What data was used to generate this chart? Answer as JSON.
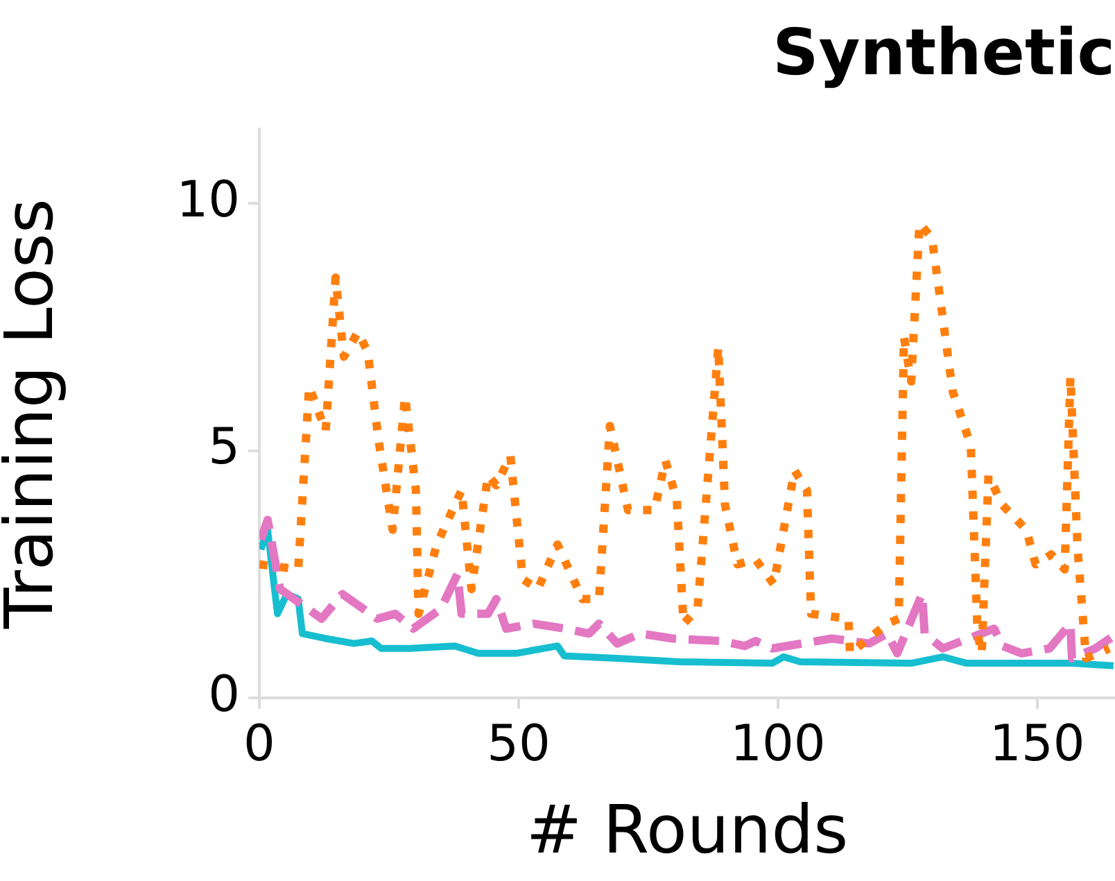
{
  "chart_data": {
    "type": "line",
    "title": "Synthetic",
    "xlabel": "# Rounds",
    "ylabel": "Training Loss",
    "xlim": [
      0,
      165
    ],
    "xticks": [
      0,
      50,
      100,
      150
    ],
    "ylim": [
      0,
      11.5
    ],
    "yticks": [
      0,
      5,
      10
    ],
    "grid": false,
    "legend": false,
    "marker": "none",
    "series": [
      {
        "color": "#ff7f0e",
        "line_style": "dotted",
        "x": [
          0,
          7.5,
          9.6,
          12.8,
          14.7,
          16.3,
          19,
          20.9,
          23,
          25.7,
          28.1,
          30.2,
          30.7,
          34.2,
          39,
          40.9,
          44.1,
          45.7,
          48.4,
          50.8,
          53.7,
          57.5,
          62.3,
          65.5,
          67.6,
          71.1,
          76.2,
          78.3,
          80.5,
          81.8,
          84.5,
          88.5,
          89.8,
          92.2,
          95.7,
          99.2,
          103.2,
          105.6,
          106.4,
          113.6,
          113.9,
          121.1,
          123.3,
          124.3,
          125.7,
          127.3,
          129.7,
          133.7,
          137.2,
          138.5,
          139.3,
          140.6,
          143.3,
          147.9,
          149.7,
          152.7,
          155.3,
          156.4,
          157.8,
          159.4,
          163.9
        ],
        "values": [
          2.7,
          2.6,
          6.3,
          5.4,
          8.5,
          6.9,
          7.4,
          7.0,
          5.2,
          3.4,
          6.1,
          4.2,
          1.7,
          3.1,
          4.2,
          2.2,
          4.5,
          4.3,
          4.9,
          2.4,
          2.2,
          3.1,
          2.0,
          2.0,
          5.5,
          3.8,
          3.8,
          4.8,
          4.0,
          1.5,
          1.8,
          7.1,
          3.9,
          2.7,
          2.8,
          2.3,
          4.6,
          4.2,
          1.7,
          1.6,
          0.9,
          1.5,
          1.6,
          7.3,
          6.4,
          9.6,
          9.3,
          6.2,
          5.1,
          1.3,
          0.9,
          4.5,
          3.9,
          3.4,
          2.7,
          2.9,
          2.6,
          6.5,
          3.0,
          0.8,
          1.0
        ]
      },
      {
        "color": "#e377c2",
        "line_style": "dashed",
        "x": [
          0.3,
          1.6,
          4,
          9.4,
          12,
          16,
          18.7,
          22.7,
          26.2,
          29.7,
          35,
          38.2,
          39,
          44.1,
          45.7,
          47.6,
          52.9,
          59.1,
          63.6,
          65.5,
          69,
          73.5,
          79.7,
          89,
          93.6,
          95.7,
          98.9,
          110.4,
          117.6,
          121.1,
          123,
          127.8,
          128.3,
          131.8,
          141.7,
          143.3,
          147,
          152.4,
          156.4,
          156.7,
          161.2,
          164.7
        ],
        "values": [
          3.2,
          3.6,
          2.2,
          1.8,
          1.6,
          2.1,
          1.9,
          1.6,
          1.7,
          1.4,
          1.8,
          2.5,
          1.7,
          1.7,
          2.0,
          1.4,
          1.5,
          1.4,
          1.3,
          1.5,
          1.1,
          1.3,
          1.2,
          1.15,
          1.05,
          1.15,
          1.0,
          1.2,
          1.1,
          1.3,
          0.9,
          2.1,
          1.3,
          1.0,
          1.4,
          1.05,
          0.9,
          1.0,
          1.5,
          0.8,
          1.0,
          1.25
        ]
      },
      {
        "color": "#17becf",
        "line_style": "solid",
        "x": [
          0.3,
          1.6,
          3.5,
          5.3,
          7.5,
          8.3,
          12.8,
          18.2,
          21.7,
          23.5,
          28.9,
          37.7,
          42.2,
          49.5,
          57.5,
          58.8,
          69,
          81,
          98.9,
          101.1,
          104.3,
          125.7,
          131.8,
          136.4,
          156.7,
          164.7
        ],
        "values": [
          3.0,
          3.4,
          1.7,
          2.1,
          2.0,
          1.3,
          1.2,
          1.1,
          1.15,
          1.0,
          1.0,
          1.05,
          0.9,
          0.9,
          1.05,
          0.85,
          0.8,
          0.73,
          0.7,
          0.83,
          0.73,
          0.7,
          0.83,
          0.7,
          0.7,
          0.65
        ]
      }
    ]
  }
}
